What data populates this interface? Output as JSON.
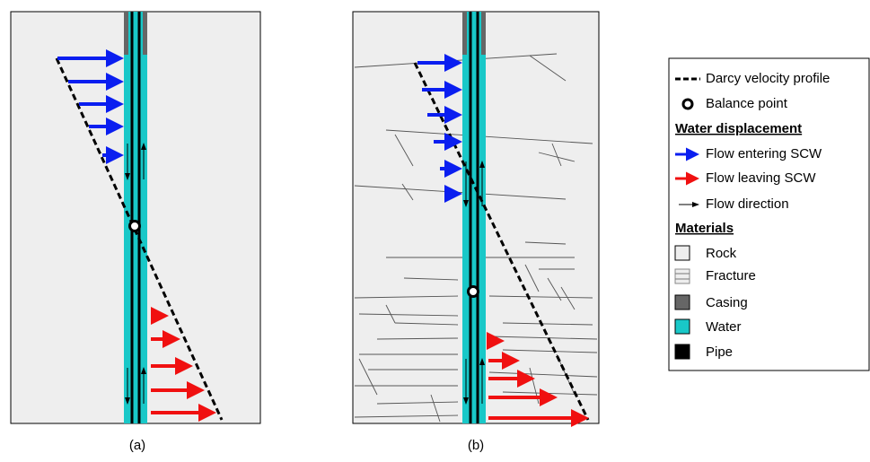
{
  "panels": [
    {
      "caption": "(a)"
    },
    {
      "caption": "(b)"
    }
  ],
  "legend": {
    "items": [
      {
        "label": "Darcy velocity profile"
      },
      {
        "label": "Balance point"
      },
      {
        "label": "Water displacement"
      },
      {
        "label": "Flow entering SCW"
      },
      {
        "label": "Flow leaving SCW"
      },
      {
        "label": "Flow direction"
      },
      {
        "label": "Materials"
      },
      {
        "label": "Rock"
      },
      {
        "label": "Fracture"
      },
      {
        "label": "Casing"
      },
      {
        "label": "Water"
      },
      {
        "label": "Pipe"
      }
    ]
  }
}
